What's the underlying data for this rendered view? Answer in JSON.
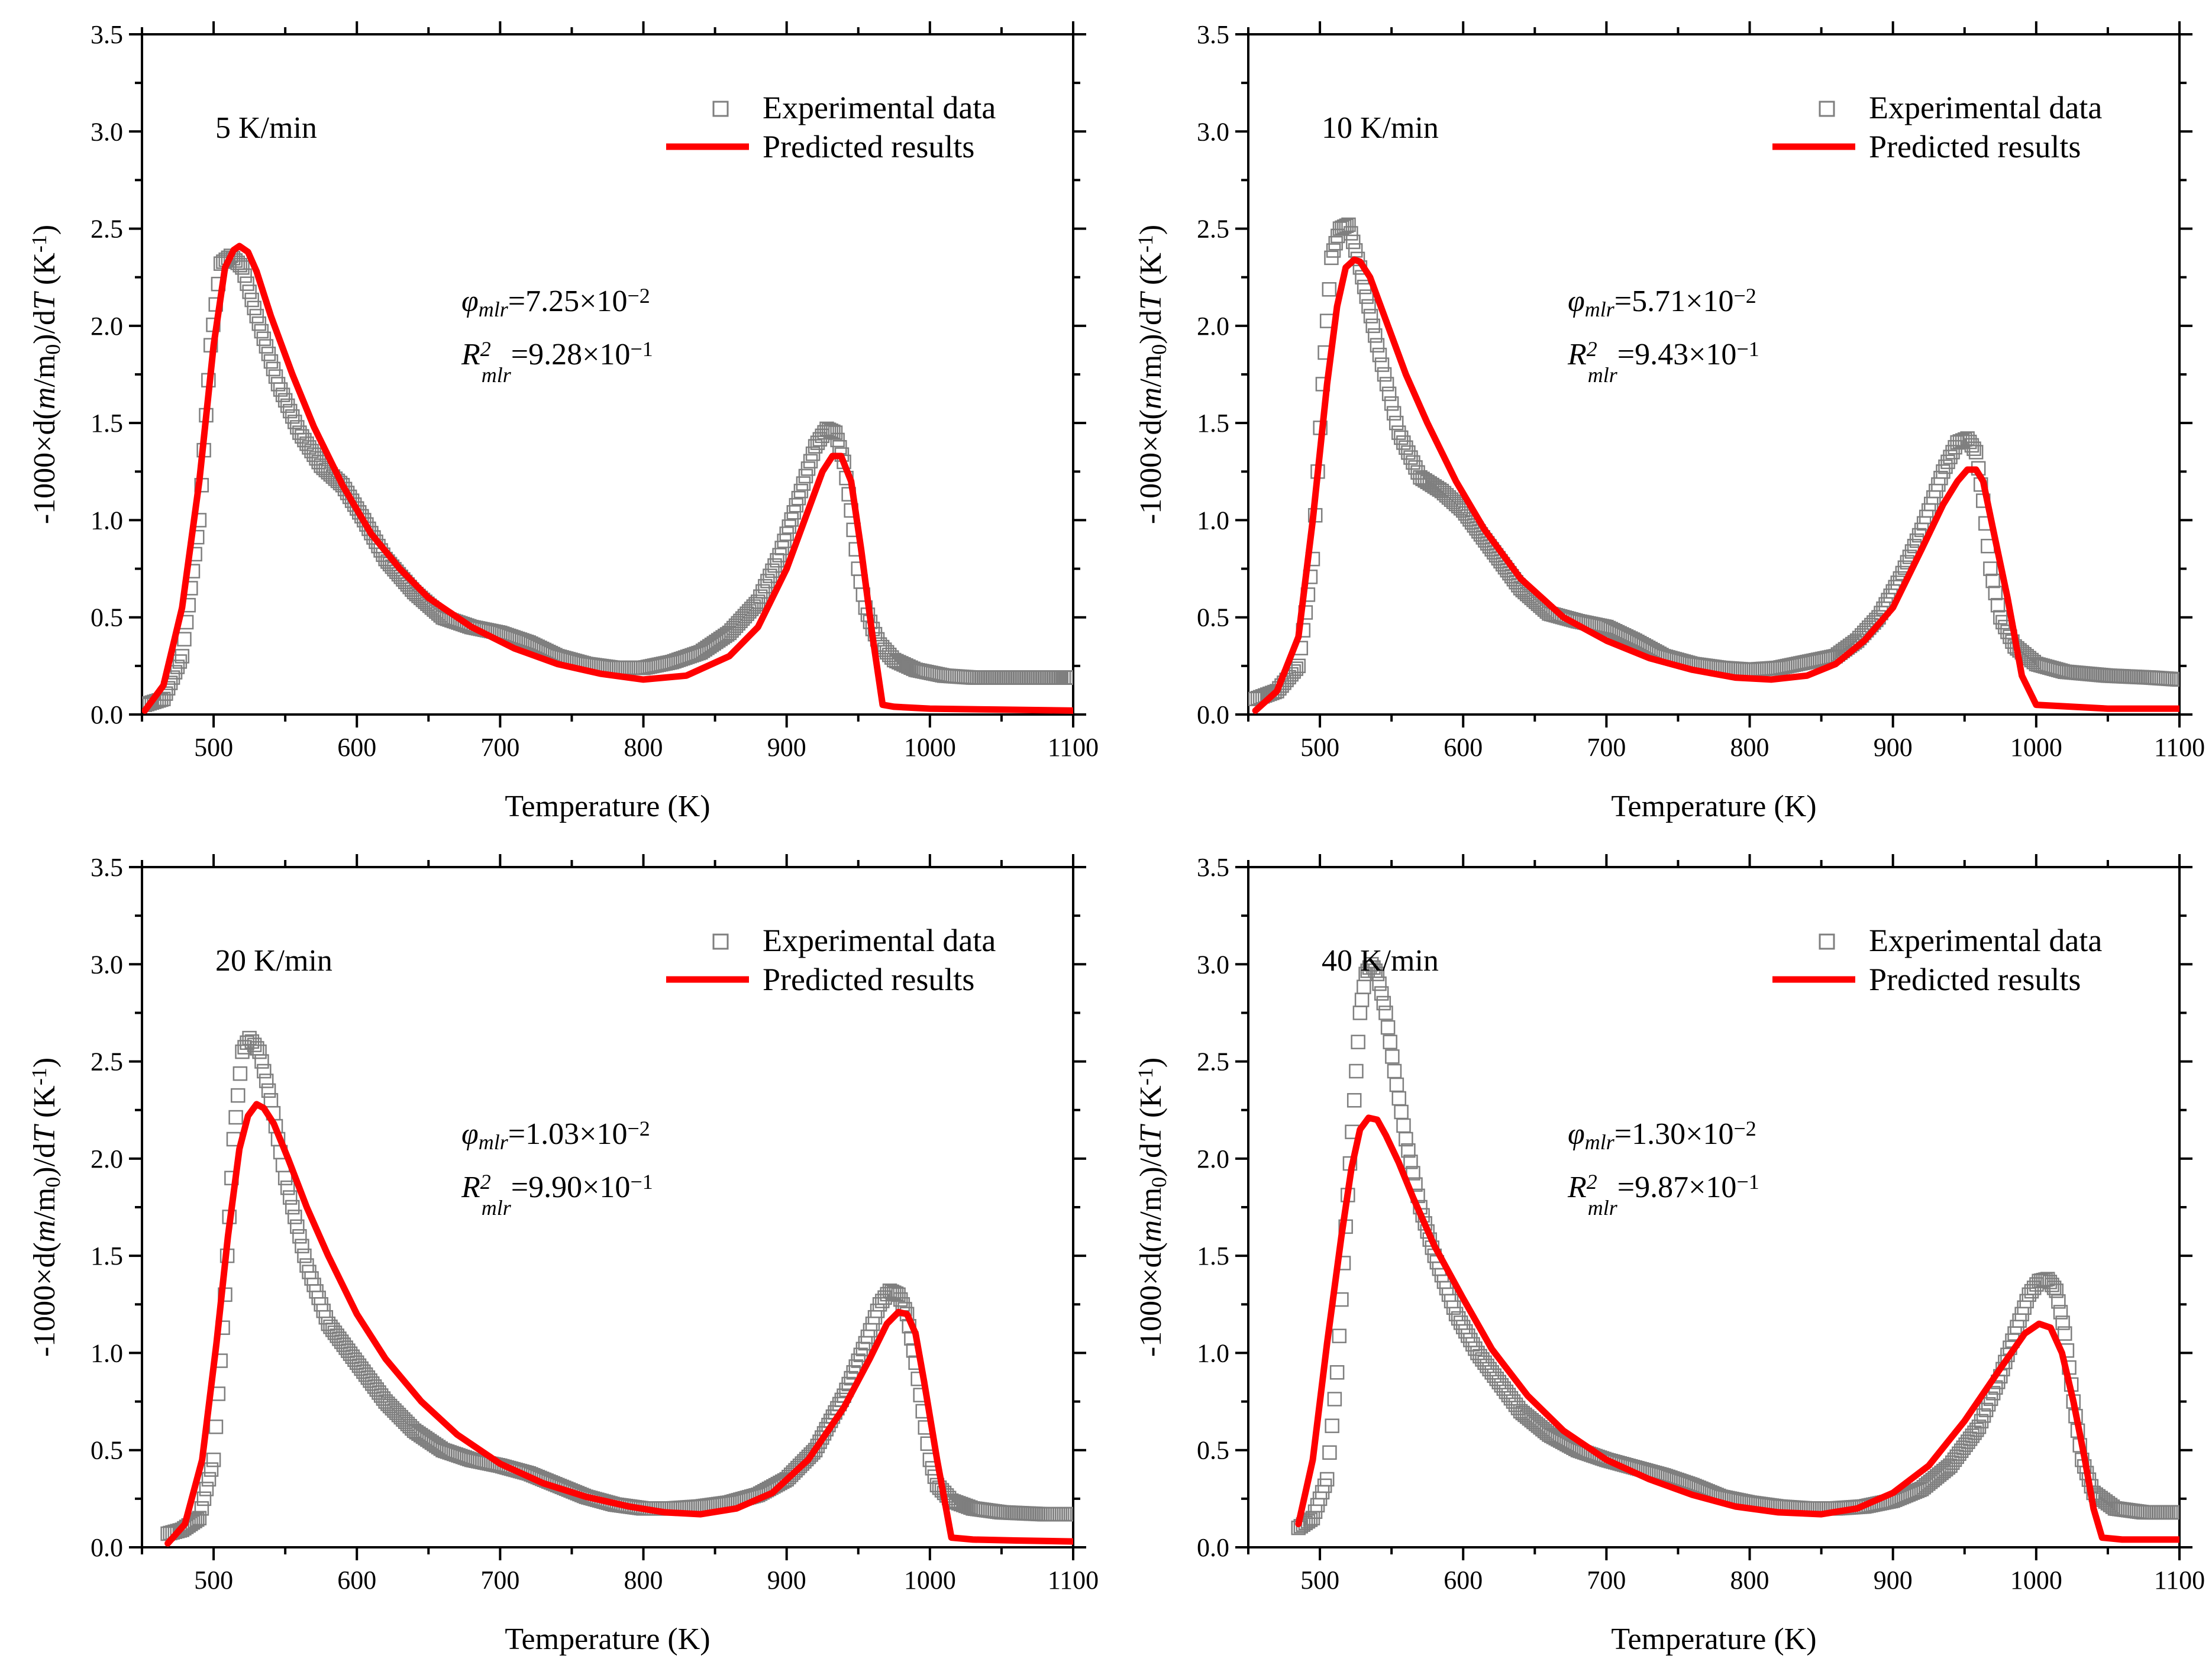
{
  "figure": {
    "x_axis_title": "Temperature (K)",
    "y_axis_title_parts": [
      "-1000×d(",
      "m",
      "/m",
      "0",
      ")/d",
      "T",
      " (K",
      "-1",
      ")"
    ],
    "legend": {
      "experimental": "Experimental data",
      "predicted": "Predicted results"
    },
    "colors": {
      "predicted": "#ff0000",
      "experimental": "#7f7f7f",
      "axis": "#000000"
    }
  },
  "chart_data": [
    {
      "type": "line",
      "heating_rate": "5 K/min",
      "xlim": [
        450,
        1100
      ],
      "ylim": [
        0,
        3.5
      ],
      "x_ticks": [
        500,
        600,
        700,
        800,
        900,
        1000,
        1100
      ],
      "y_ticks": [
        0.0,
        0.5,
        1.0,
        1.5,
        2.0,
        2.5,
        3.0,
        3.5
      ],
      "stats": {
        "phi_symbol": "φ",
        "subscript": "mlr",
        "phi_value": "=7.25×10",
        "phi_exp": "−2",
        "r2_symbol": "R",
        "r2_sup": "2",
        "r2_value": "=9.28×10",
        "r2_exp": "−1"
      },
      "series": [
        {
          "name": "Experimental data",
          "style": "open-square",
          "x": [
            452,
            465,
            478,
            490,
            498,
            505,
            512,
            520,
            530,
            545,
            560,
            575,
            590,
            605,
            620,
            640,
            660,
            680,
            700,
            720,
            740,
            760,
            780,
            800,
            820,
            840,
            860,
            880,
            895,
            910,
            920,
            928,
            934,
            940,
            945,
            950,
            955,
            960,
            965,
            975,
            990,
            1010,
            1030,
            1060,
            1090,
            1100
          ],
          "y": [
            0.05,
            0.08,
            0.3,
            1.0,
            1.9,
            2.32,
            2.36,
            2.3,
            2.05,
            1.7,
            1.45,
            1.28,
            1.18,
            1.0,
            0.8,
            0.63,
            0.5,
            0.45,
            0.42,
            0.37,
            0.3,
            0.26,
            0.24,
            0.24,
            0.27,
            0.32,
            0.42,
            0.58,
            0.82,
            1.15,
            1.38,
            1.47,
            1.45,
            1.3,
            1.05,
            0.75,
            0.55,
            0.44,
            0.36,
            0.28,
            0.23,
            0.2,
            0.19,
            0.19,
            0.19,
            0.19
          ]
        },
        {
          "name": "Predicted results",
          "style": "line",
          "x": [
            452,
            465,
            478,
            490,
            500,
            508,
            514,
            518,
            524,
            530,
            540,
            555,
            570,
            590,
            610,
            630,
            650,
            680,
            710,
            740,
            770,
            800,
            830,
            860,
            880,
            900,
            915,
            925,
            932,
            938,
            945,
            952,
            960,
            967,
            975,
            1000,
            1050,
            1100
          ],
          "y": [
            0.02,
            0.15,
            0.55,
            1.2,
            1.9,
            2.3,
            2.39,
            2.41,
            2.38,
            2.28,
            2.05,
            1.75,
            1.48,
            1.18,
            0.93,
            0.75,
            0.6,
            0.45,
            0.34,
            0.26,
            0.21,
            0.18,
            0.2,
            0.3,
            0.45,
            0.75,
            1.05,
            1.25,
            1.33,
            1.33,
            1.2,
            0.85,
            0.4,
            0.05,
            0.04,
            0.03,
            0.025,
            0.02
          ]
        }
      ]
    },
    {
      "type": "line",
      "heating_rate": "10 K/min",
      "xlim": [
        450,
        1100
      ],
      "ylim": [
        0,
        3.5
      ],
      "x_ticks": [
        500,
        600,
        700,
        800,
        900,
        1000,
        1100
      ],
      "y_ticks": [
        0.0,
        0.5,
        1.0,
        1.5,
        2.0,
        2.5,
        3.0,
        3.5
      ],
      "stats": {
        "phi_symbol": "φ",
        "subscript": "mlr",
        "phi_value": "=5.71×10",
        "phi_exp": "−2",
        "r2_symbol": "R",
        "r2_sup": "2",
        "r2_value": "=9.43×10",
        "r2_exp": "−1"
      },
      "series": [
        {
          "name": "Experimental data",
          "style": "open-square",
          "x": [
            455,
            470,
            485,
            495,
            502,
            508,
            514,
            520,
            528,
            540,
            555,
            570,
            585,
            600,
            620,
            640,
            660,
            680,
            700,
            720,
            740,
            760,
            780,
            800,
            820,
            840,
            860,
            875,
            890,
            905,
            920,
            935,
            945,
            952,
            958,
            963,
            968,
            975,
            985,
            1000,
            1020,
            1050,
            1080,
            1100
          ],
          "y": [
            0.08,
            0.12,
            0.25,
            0.8,
            1.7,
            2.35,
            2.5,
            2.52,
            2.3,
            1.9,
            1.45,
            1.22,
            1.15,
            1.05,
            0.85,
            0.65,
            0.52,
            0.48,
            0.45,
            0.38,
            0.3,
            0.26,
            0.24,
            0.23,
            0.24,
            0.27,
            0.3,
            0.38,
            0.5,
            0.7,
            0.95,
            1.25,
            1.4,
            1.42,
            1.35,
            1.1,
            0.75,
            0.5,
            0.35,
            0.26,
            0.22,
            0.2,
            0.19,
            0.18
          ]
        },
        {
          "name": "Predicted results",
          "style": "line",
          "x": [
            455,
            470,
            485,
            495,
            505,
            512,
            518,
            524,
            528,
            535,
            545,
            560,
            575,
            595,
            615,
            640,
            670,
            700,
            730,
            760,
            790,
            815,
            840,
            860,
            880,
            900,
            920,
            935,
            945,
            952,
            958,
            963,
            970,
            980,
            990,
            1000,
            1050,
            1100
          ],
          "y": [
            0.02,
            0.12,
            0.4,
            1.0,
            1.7,
            2.1,
            2.3,
            2.34,
            2.33,
            2.25,
            2.05,
            1.75,
            1.5,
            1.2,
            0.95,
            0.7,
            0.5,
            0.38,
            0.29,
            0.23,
            0.19,
            0.18,
            0.2,
            0.26,
            0.38,
            0.55,
            0.85,
            1.08,
            1.2,
            1.26,
            1.26,
            1.2,
            0.95,
            0.6,
            0.2,
            0.05,
            0.03,
            0.03
          ]
        }
      ]
    },
    {
      "type": "line",
      "heating_rate": "20 K/min",
      "xlim": [
        450,
        1100
      ],
      "ylim": [
        0,
        3.5
      ],
      "x_ticks": [
        500,
        600,
        700,
        800,
        900,
        1000,
        1100
      ],
      "y_ticks": [
        0.0,
        0.5,
        1.0,
        1.5,
        2.0,
        2.5,
        3.0,
        3.5
      ],
      "stats": {
        "phi_symbol": "φ",
        "subscript": "mlr",
        "phi_value": "=1.03×10",
        "phi_exp": "−2",
        "r2_symbol": "R",
        "r2_sup": "2",
        "r2_value": "=9.90×10",
        "r2_exp": "−1"
      },
      "series": [
        {
          "name": "Experimental data",
          "style": "open-square",
          "x": [
            468,
            478,
            490,
            500,
            508,
            514,
            520,
            525,
            532,
            540,
            550,
            565,
            580,
            600,
            620,
            640,
            660,
            680,
            700,
            720,
            740,
            760,
            780,
            800,
            820,
            840,
            860,
            880,
            900,
            920,
            940,
            955,
            965,
            972,
            978,
            984,
            990,
            995,
            1000,
            1005,
            1015,
            1030,
            1050,
            1080,
            1100
          ],
          "y": [
            0.07,
            0.09,
            0.15,
            0.45,
            1.3,
            2.1,
            2.55,
            2.62,
            2.55,
            2.3,
            1.9,
            1.45,
            1.15,
            0.95,
            0.75,
            0.6,
            0.5,
            0.45,
            0.42,
            0.38,
            0.32,
            0.26,
            0.22,
            0.2,
            0.2,
            0.21,
            0.23,
            0.27,
            0.35,
            0.5,
            0.78,
            1.05,
            1.25,
            1.32,
            1.3,
            1.2,
            0.95,
            0.7,
            0.45,
            0.32,
            0.24,
            0.2,
            0.18,
            0.17,
            0.17
          ]
        },
        {
          "name": "Predicted results",
          "style": "line",
          "x": [
            468,
            480,
            492,
            502,
            510,
            518,
            524,
            530,
            535,
            542,
            552,
            565,
            580,
            600,
            620,
            645,
            670,
            700,
            730,
            760,
            790,
            815,
            840,
            865,
            890,
            915,
            940,
            958,
            970,
            978,
            984,
            990,
            996,
            1005,
            1015,
            1030,
            1060,
            1100
          ],
          "y": [
            0.02,
            0.12,
            0.45,
            1.05,
            1.6,
            2.05,
            2.22,
            2.28,
            2.26,
            2.18,
            2.0,
            1.75,
            1.5,
            1.2,
            0.97,
            0.75,
            0.58,
            0.43,
            0.33,
            0.26,
            0.21,
            0.18,
            0.17,
            0.2,
            0.28,
            0.45,
            0.72,
            0.97,
            1.15,
            1.21,
            1.2,
            1.1,
            0.85,
            0.45,
            0.05,
            0.04,
            0.035,
            0.03
          ]
        }
      ]
    },
    {
      "type": "line",
      "heating_rate": "40 K/min",
      "xlim": [
        450,
        1100
      ],
      "ylim": [
        0,
        3.5
      ],
      "x_ticks": [
        500,
        600,
        700,
        800,
        900,
        1000,
        1100
      ],
      "y_ticks": [
        0.0,
        0.5,
        1.0,
        1.5,
        2.0,
        2.5,
        3.0,
        3.5
      ],
      "stats": {
        "phi_symbol": "φ",
        "subscript": "mlr",
        "phi_value": "=1.30×10",
        "phi_exp": "−2",
        "r2_symbol": "R",
        "r2_sup": "2",
        "r2_value": "=9.87×10",
        "r2_exp": "−1"
      },
      "series": [
        {
          "name": "Experimental data",
          "style": "open-square",
          "x": [
            485,
            495,
            505,
            512,
            518,
            524,
            528,
            532,
            536,
            540,
            546,
            552,
            560,
            570,
            580,
            595,
            610,
            625,
            640,
            660,
            680,
            700,
            720,
            740,
            760,
            780,
            800,
            820,
            840,
            860,
            880,
            900,
            920,
            940,
            960,
            975,
            985,
            995,
            1002,
            1008,
            1014,
            1020,
            1026,
            1032,
            1040,
            1055,
            1075,
            1100
          ],
          "y": [
            0.1,
            0.15,
            0.35,
            0.9,
            1.65,
            2.3,
            2.75,
            2.95,
            3.0,
            2.95,
            2.75,
            2.45,
            2.1,
            1.75,
            1.5,
            1.2,
            1.0,
            0.85,
            0.7,
            0.58,
            0.5,
            0.45,
            0.41,
            0.37,
            0.32,
            0.26,
            0.23,
            0.21,
            0.2,
            0.2,
            0.21,
            0.24,
            0.3,
            0.42,
            0.62,
            0.88,
            1.1,
            1.3,
            1.37,
            1.38,
            1.32,
            1.1,
            0.75,
            0.45,
            0.28,
            0.2,
            0.18,
            0.18
          ]
        },
        {
          "name": "Predicted results",
          "style": "line",
          "x": [
            485,
            495,
            505,
            515,
            522,
            528,
            534,
            540,
            546,
            555,
            565,
            580,
            600,
            620,
            645,
            670,
            700,
            730,
            760,
            790,
            820,
            850,
            875,
            900,
            925,
            950,
            975,
            992,
            1002,
            1010,
            1018,
            1026,
            1034,
            1040,
            1046,
            1060,
            1100
          ],
          "y": [
            0.12,
            0.45,
            1.05,
            1.6,
            1.95,
            2.15,
            2.21,
            2.2,
            2.12,
            1.98,
            1.8,
            1.55,
            1.28,
            1.02,
            0.78,
            0.6,
            0.45,
            0.35,
            0.27,
            0.21,
            0.18,
            0.17,
            0.2,
            0.28,
            0.42,
            0.65,
            0.92,
            1.1,
            1.15,
            1.13,
            1.0,
            0.75,
            0.45,
            0.2,
            0.05,
            0.04,
            0.04
          ]
        }
      ]
    }
  ]
}
